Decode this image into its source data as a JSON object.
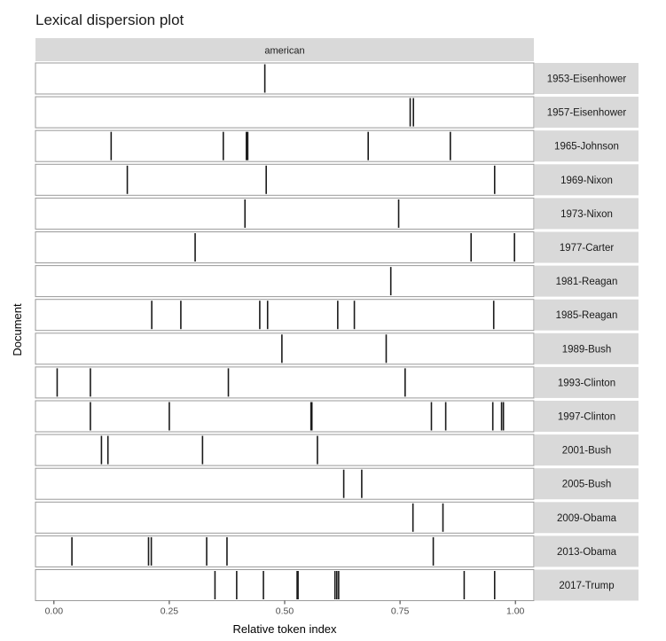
{
  "chart_data": {
    "type": "dispersion",
    "title": "Lexical dispersion plot",
    "facet": "american",
    "xlabel": "Relative token index",
    "ylabel": "Document",
    "xlim": [
      -0.04,
      1.04
    ],
    "xticks": [
      0.0,
      0.25,
      0.5,
      0.75,
      1.0
    ],
    "xtick_labels": [
      "0.00",
      "0.25",
      "0.50",
      "0.75",
      "1.00"
    ],
    "documents": [
      {
        "name": "1953-Eisenhower",
        "positions": [
          0.457
        ]
      },
      {
        "name": "1957-Eisenhower",
        "positions": [
          0.772,
          0.779
        ]
      },
      {
        "name": "1965-Johnson",
        "positions": [
          0.124,
          0.367,
          0.417,
          0.42,
          0.681,
          0.859
        ]
      },
      {
        "name": "1969-Nixon",
        "positions": [
          0.159,
          0.46,
          0.955
        ]
      },
      {
        "name": "1973-Nixon",
        "positions": [
          0.414,
          0.747
        ]
      },
      {
        "name": "1977-Carter",
        "positions": [
          0.306,
          0.904,
          0.998
        ]
      },
      {
        "name": "1981-Reagan",
        "positions": [
          0.73
        ]
      },
      {
        "name": "1985-Reagan",
        "positions": [
          0.212,
          0.275,
          0.446,
          0.463,
          0.615,
          0.651,
          0.953
        ]
      },
      {
        "name": "1989-Bush",
        "positions": [
          0.494,
          0.72
        ]
      },
      {
        "name": "1993-Clinton",
        "positions": [
          0.007,
          0.079,
          0.378,
          0.761
        ]
      },
      {
        "name": "1997-Clinton",
        "positions": [
          0.079,
          0.25,
          0.557,
          0.559,
          0.818,
          0.849,
          0.951,
          0.97,
          0.974
        ]
      },
      {
        "name": "2001-Bush",
        "positions": [
          0.103,
          0.117,
          0.322,
          0.571
        ]
      },
      {
        "name": "2005-Bush",
        "positions": [
          0.628,
          0.667
        ]
      },
      {
        "name": "2009-Obama",
        "positions": [
          0.778,
          0.843
        ]
      },
      {
        "name": "2013-Obama",
        "positions": [
          0.039,
          0.205,
          0.211,
          0.331,
          0.375,
          0.822
        ]
      },
      {
        "name": "2017-Trump",
        "positions": [
          0.349,
          0.396,
          0.454,
          0.527,
          0.529,
          0.609,
          0.613,
          0.617,
          0.889,
          0.955
        ]
      }
    ]
  }
}
